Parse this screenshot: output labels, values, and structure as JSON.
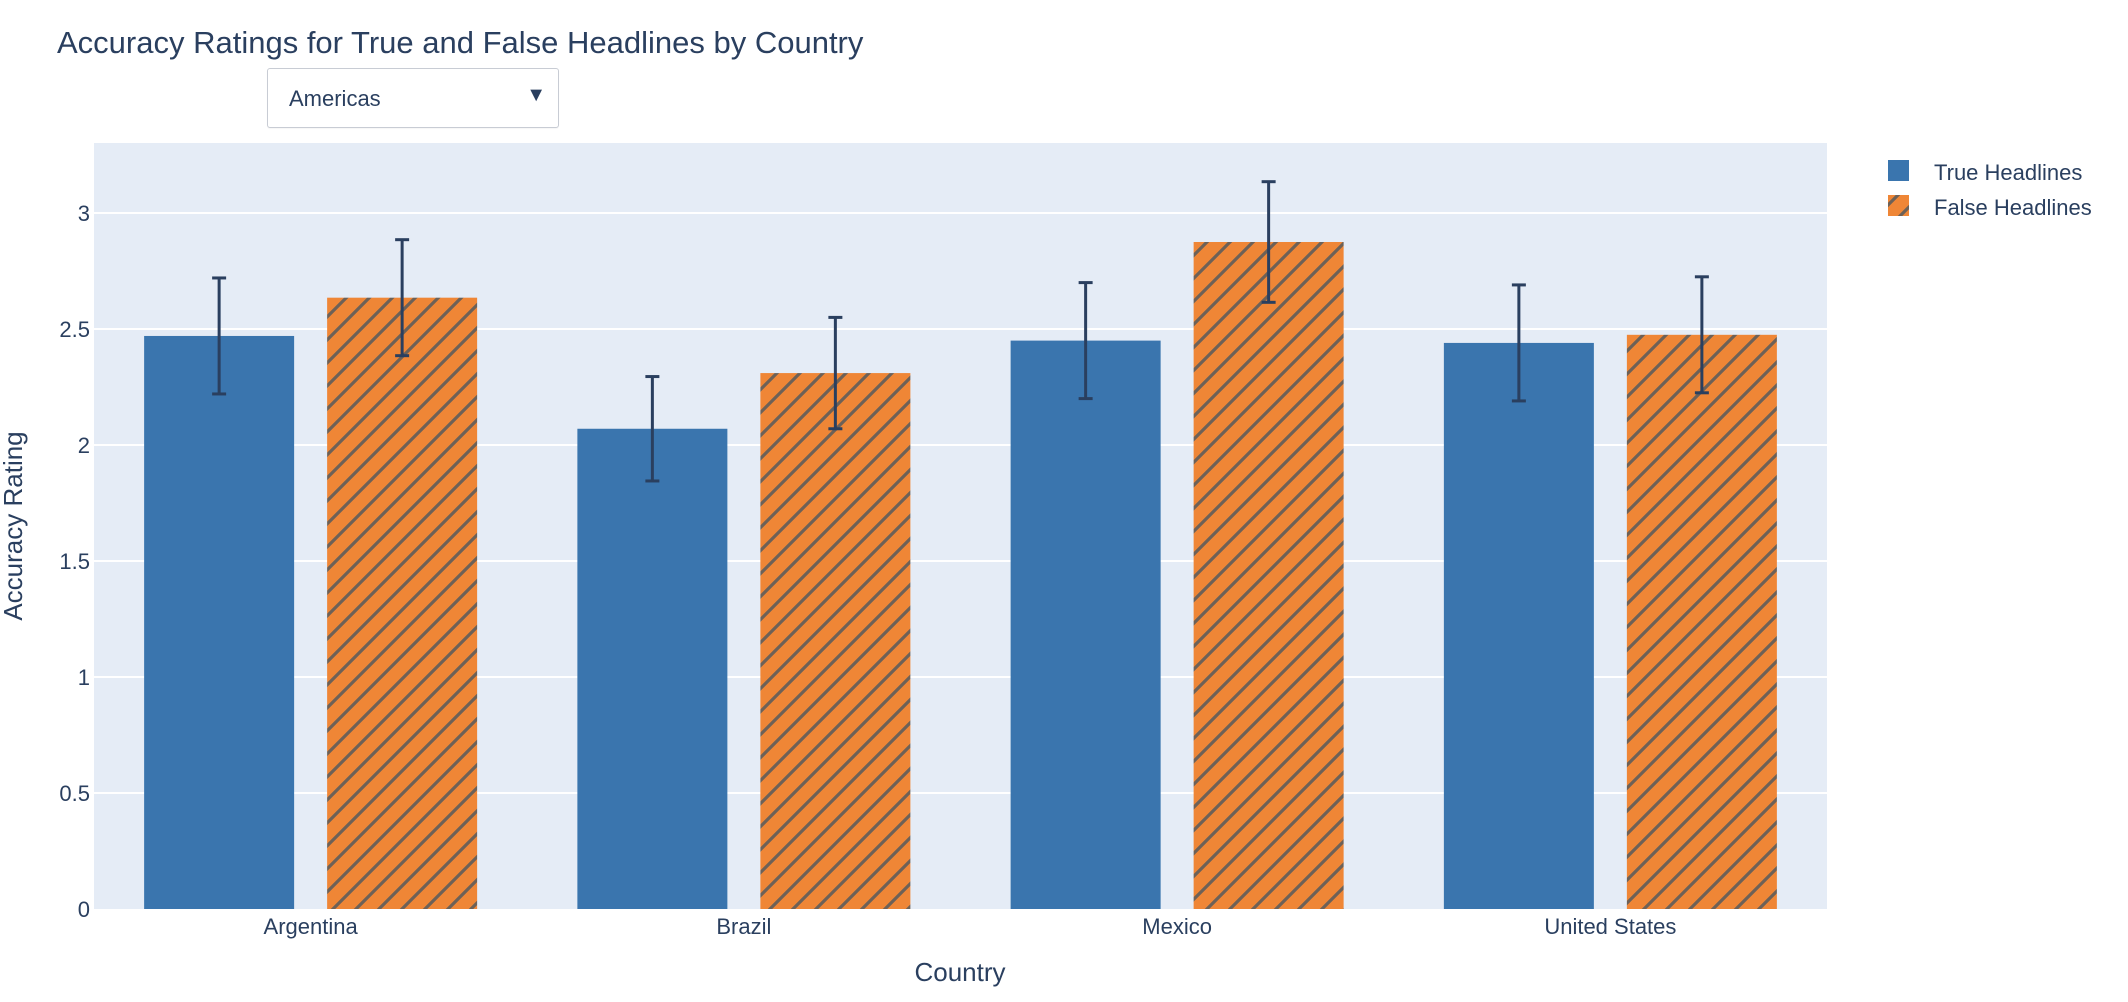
{
  "dropdown": {
    "selected": "Americas",
    "arrow_icon": "▼"
  },
  "chart_data": {
    "type": "bar",
    "title": "Accuracy Ratings for True and False Headlines by Country",
    "xlabel": "Country",
    "ylabel": "Accuracy Rating",
    "categories": [
      "Argentina",
      "Brazil",
      "Mexico",
      "United States"
    ],
    "series": [
      {
        "name": "True Headlines",
        "color": "#3a75ae",
        "pattern": "solid",
        "values": [
          2.47,
          2.07,
          2.45,
          2.44
        ],
        "error": [
          0.25,
          0.225,
          0.25,
          0.25
        ]
      },
      {
        "name": "False Headlines",
        "color": "#ef8636",
        "pattern": "diagonal-hatch",
        "values": [
          2.635,
          2.31,
          2.875,
          2.475
        ],
        "error": [
          0.25,
          0.24,
          0.26,
          0.25
        ]
      }
    ],
    "ylim": [
      0,
      3.3
    ],
    "yticks": [
      "0",
      "0.5",
      "1",
      "1.5",
      "2",
      "2.5",
      "3"
    ],
    "grid": true,
    "legend_position": "top-right",
    "plot_bgcolor": "#e5ecf6",
    "errorbar_color": "#2a3f5f"
  }
}
